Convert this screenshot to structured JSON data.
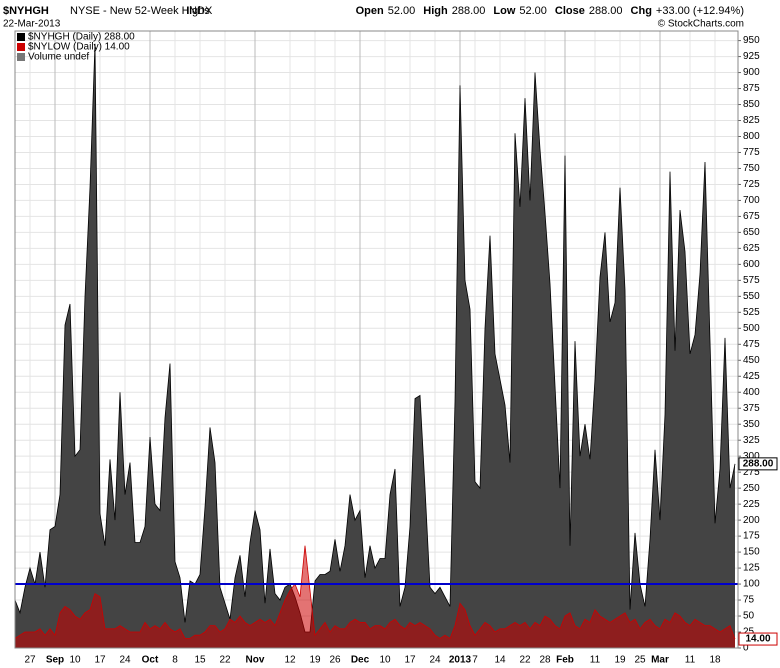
{
  "header": {
    "symbol": "$NYHGH",
    "name": "NYSE - New 52-Week Highs",
    "exchange": "INDX",
    "date": "22-Mar-2013",
    "credit": "© StockCharts.com",
    "quote": [
      {
        "label": "Open",
        "value": "52.00"
      },
      {
        "label": "High",
        "value": "288.00"
      },
      {
        "label": "Low",
        "value": "52.00"
      },
      {
        "label": "Close",
        "value": "288.00"
      },
      {
        "label": "Chg",
        "value": "+33.00 (+12.94%)"
      }
    ]
  },
  "legend": [
    "$NYHGH (Daily) 288.00",
    "$NYLOW (Daily) 14.00",
    "Volume undef"
  ],
  "chart_data": {
    "type": "area",
    "categories": [
      null,
      null,
      null,
      "27",
      null,
      null,
      null,
      null,
      "Sep",
      null,
      null,
      null,
      "10",
      null,
      null,
      null,
      null,
      "17",
      null,
      null,
      null,
      null,
      "24",
      null,
      null,
      null,
      null,
      "Oct",
      null,
      null,
      null,
      null,
      "8",
      null,
      null,
      null,
      null,
      "15",
      null,
      null,
      null,
      null,
      "22",
      null,
      null,
      null,
      null,
      null,
      "Nov",
      null,
      null,
      null,
      null,
      null,
      null,
      "12",
      null,
      null,
      null,
      null,
      "19",
      null,
      null,
      null,
      "26",
      null,
      null,
      null,
      null,
      "Dec",
      null,
      null,
      null,
      null,
      "10",
      null,
      null,
      null,
      null,
      "17",
      null,
      null,
      null,
      null,
      "24",
      null,
      null,
      null,
      null,
      "2013",
      null,
      null,
      "7",
      null,
      null,
      null,
      null,
      "14",
      null,
      null,
      null,
      null,
      "22",
      null,
      null,
      null,
      "28",
      null,
      null,
      null,
      "Feb",
      null,
      null,
      null,
      null,
      null,
      "11",
      null,
      null,
      null,
      null,
      "19",
      null,
      null,
      null,
      "25",
      null,
      null,
      null,
      "Mar",
      null,
      null,
      null,
      null,
      null,
      "11",
      null,
      null,
      null,
      null,
      "18",
      null,
      null,
      null,
      null
    ],
    "series": [
      {
        "name": "$NYHGH",
        "color": "#444444",
        "stroke": "#000000",
        "last_label": "288.00",
        "values": [
          75,
          55,
          95,
          125,
          100,
          150,
          95,
          185,
          190,
          240,
          505,
          538,
          300,
          310,
          550,
          720,
          945,
          210,
          160,
          295,
          200,
          400,
          240,
          290,
          165,
          165,
          190,
          330,
          225,
          215,
          360,
          445,
          135,
          110,
          40,
          105,
          100,
          115,
          220,
          345,
          290,
          95,
          70,
          45,
          110,
          145,
          80,
          165,
          215,
          185,
          70,
          155,
          85,
          75,
          95,
          100,
          80,
          55,
          25,
          25,
          105,
          115,
          115,
          120,
          170,
          120,
          160,
          240,
          200,
          215,
          110,
          160,
          125,
          140,
          140,
          240,
          280,
          65,
          95,
          190,
          390,
          395,
          250,
          95,
          85,
          95,
          80,
          65,
          385,
          880,
          575,
          530,
          260,
          250,
          500,
          645,
          460,
          420,
          380,
          290,
          805,
          690,
          860,
          700,
          900,
          780,
          680,
          570,
          410,
          250,
          770,
          160,
          480,
          300,
          350,
          295,
          420,
          580,
          650,
          510,
          540,
          720,
          560,
          60,
          180,
          100,
          65,
          170,
          310,
          200,
          365,
          745,
          465,
          685,
          620,
          460,
          490,
          585,
          760,
          480,
          195,
          280,
          485,
          250,
          288
        ]
      },
      {
        "name": "$NYLOW",
        "color": "#cc0000",
        "stroke": "#cc0000",
        "last_label": "14.00",
        "values": [
          15,
          20,
          25,
          25,
          25,
          30,
          20,
          30,
          20,
          55,
          65,
          60,
          50,
          45,
          55,
          60,
          85,
          80,
          30,
          30,
          30,
          35,
          30,
          25,
          25,
          25,
          40,
          30,
          35,
          30,
          40,
          30,
          25,
          30,
          15,
          15,
          20,
          20,
          25,
          35,
          35,
          25,
          30,
          45,
          40,
          50,
          40,
          35,
          40,
          45,
          40,
          45,
          35,
          55,
          75,
          90,
          100,
          80,
          160,
          90,
          20,
          30,
          40,
          25,
          35,
          30,
          30,
          40,
          45,
          40,
          40,
          30,
          35,
          35,
          30,
          40,
          45,
          35,
          30,
          40,
          35,
          40,
          35,
          30,
          20,
          15,
          20,
          15,
          35,
          70,
          60,
          35,
          20,
          30,
          40,
          35,
          25,
          30,
          30,
          35,
          40,
          35,
          40,
          30,
          40,
          35,
          50,
          45,
          35,
          30,
          50,
          55,
          35,
          30,
          45,
          40,
          60,
          50,
          45,
          40,
          45,
          50,
          55,
          40,
          45,
          30,
          40,
          45,
          35,
          30,
          45,
          40,
          55,
          50,
          40,
          35,
          45,
          40,
          35,
          35,
          30,
          25,
          30,
          35,
          14
        ]
      }
    ],
    "reference_line": {
      "value": 100,
      "color": "#0000cc"
    },
    "ylim": [
      0,
      965
    ],
    "yticks": [
      0,
      25,
      50,
      75,
      100,
      125,
      150,
      175,
      200,
      225,
      250,
      275,
      300,
      325,
      350,
      375,
      400,
      425,
      450,
      475,
      500,
      525,
      550,
      575,
      600,
      625,
      650,
      675,
      700,
      725,
      750,
      775,
      800,
      825,
      850,
      875,
      900,
      925,
      950
    ],
    "grid": true
  }
}
